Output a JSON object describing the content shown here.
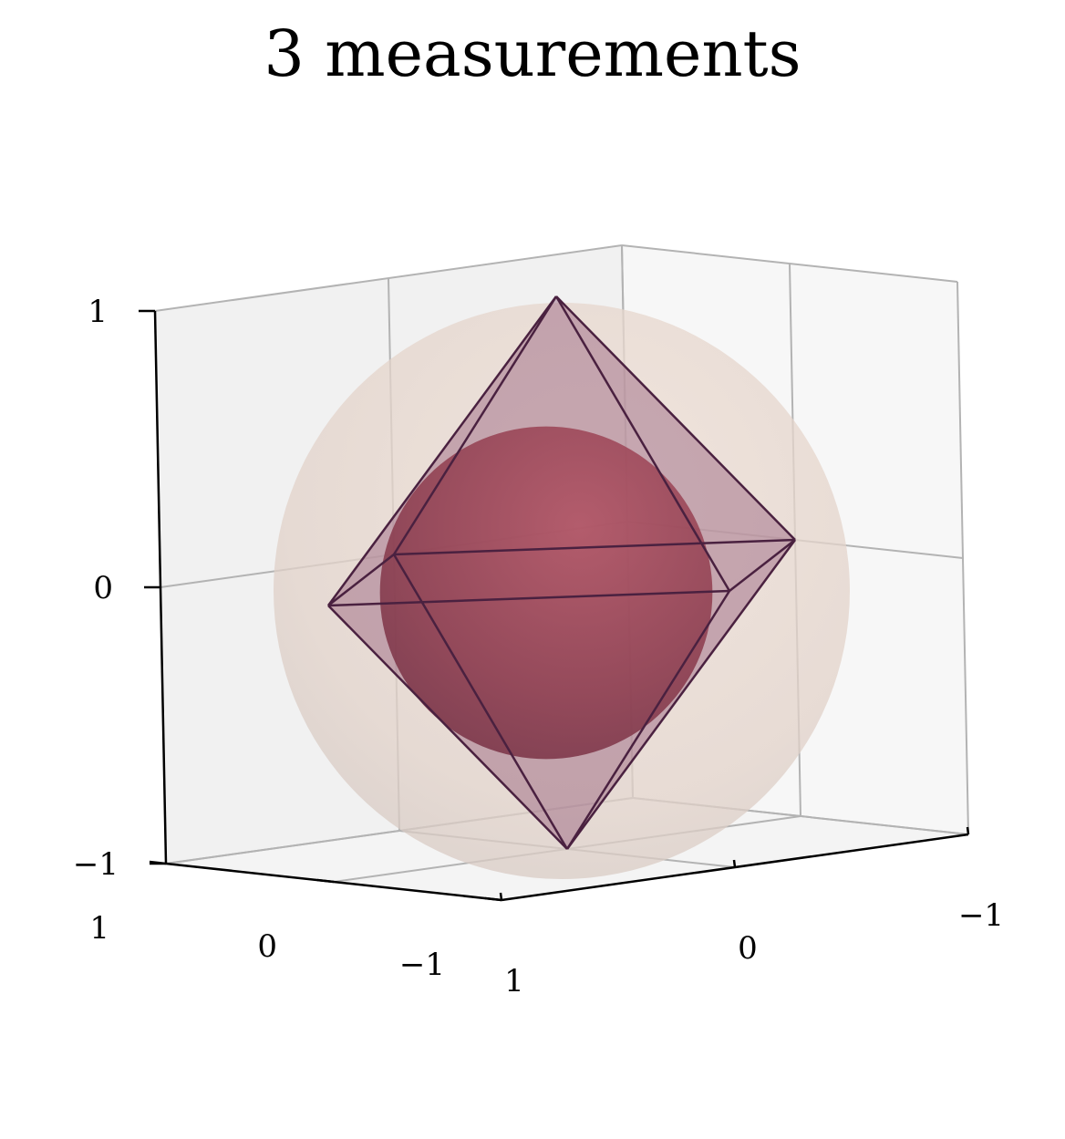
{
  "chart_data": {
    "type": "3d-surface",
    "title": "3 measurements",
    "xlabel": "",
    "ylabel": "",
    "zlabel": "",
    "axes": {
      "x": {
        "range": [
          -1,
          1
        ],
        "ticks": [
          {
            "v": 1,
            "label": "1"
          },
          {
            "v": 0,
            "label": "0"
          },
          {
            "v": -1,
            "label": "−1"
          }
        ]
      },
      "y": {
        "range": [
          -1,
          1
        ],
        "ticks": [
          {
            "v": -1,
            "label": "−1"
          },
          {
            "v": 0,
            "label": "0"
          },
          {
            "v": 1,
            "label": "1"
          }
        ]
      },
      "z": {
        "range": [
          -1,
          1
        ],
        "ticks": [
          {
            "v": 1,
            "label": "1"
          },
          {
            "v": 0,
            "label": "0"
          },
          {
            "v": -1,
            "label": "−1"
          }
        ]
      }
    },
    "grid": true,
    "shapes": [
      {
        "name": "outer-sphere",
        "kind": "sphere",
        "radius": 1.0,
        "color": "#e6d3c8",
        "opacity": 0.75
      },
      {
        "name": "octahedron",
        "kind": "octahedron",
        "vertices": [
          [
            0,
            0,
            1
          ],
          [
            0,
            0,
            -1
          ],
          [
            1,
            0,
            0
          ],
          [
            -1,
            0,
            0
          ],
          [
            0,
            1,
            0
          ],
          [
            0,
            -1,
            0
          ]
        ],
        "edge_color": "#4a2140",
        "face_color": "#8a4a6c",
        "opacity": 0.45
      },
      {
        "name": "inner-sphere",
        "kind": "sphere",
        "radius": 0.577,
        "color": "#9a3a50",
        "opacity": 0.85
      }
    ]
  }
}
